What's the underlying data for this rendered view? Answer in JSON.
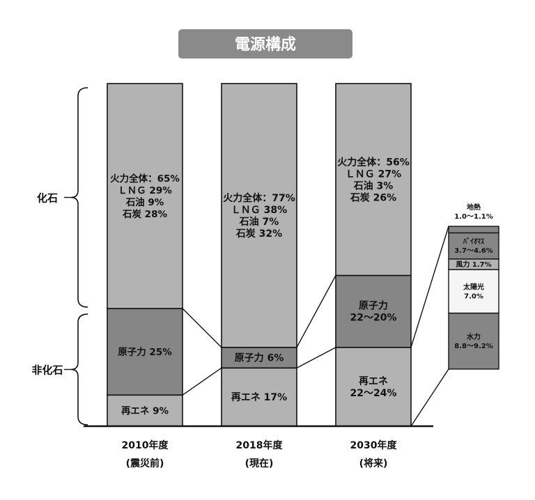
{
  "chart_data": {
    "type": "bar",
    "title": "電源構成",
    "stacking": "stacked-100",
    "grid": false,
    "categories": [
      {
        "year": "2010年度",
        "note": "(震災前)"
      },
      {
        "year": "2018年度",
        "note": "(現在)"
      },
      {
        "year": "2030年度",
        "note": "(将来)"
      }
    ],
    "groups": [
      {
        "label": "化石",
        "member": "fossil"
      },
      {
        "label": "非化石",
        "member": "non-fossil"
      }
    ],
    "bars": [
      {
        "segments": [
          {
            "key": "renewable",
            "value": 9,
            "color": "#b3b3b3",
            "lines": [
              "再エネ 9%"
            ]
          },
          {
            "key": "nuclear",
            "value": 25,
            "color": "#868686",
            "lines": [
              "原子力 25%"
            ]
          },
          {
            "key": "fossil",
            "value": 65,
            "color": "#b3b3b3",
            "lines": [
              "火力全体：65%",
              "ＬＮＧ 29%",
              "石油 9%",
              "石炭 28%"
            ]
          }
        ]
      },
      {
        "segments": [
          {
            "key": "renewable",
            "value": 17,
            "color": "#b3b3b3",
            "lines": [
              "再エネ 17%"
            ]
          },
          {
            "key": "nuclear",
            "value": 6,
            "color": "#868686",
            "lines": [
              "原子力 6%"
            ]
          },
          {
            "key": "fossil",
            "value": 77,
            "color": "#b3b3b3",
            "lines": [
              "火力全体：77%",
              "ＬＮＧ 38%",
              "石油 7%",
              "石炭 32%"
            ]
          }
        ]
      },
      {
        "segments": [
          {
            "key": "renewable",
            "value": 23,
            "color": "#b3b3b3",
            "lines": [
              "再エネ",
              "22～24%"
            ]
          },
          {
            "key": "nuclear",
            "value": 21,
            "color": "#868686",
            "lines": [
              "原子力",
              "22～20%"
            ]
          },
          {
            "key": "fossil",
            "value": 56,
            "color": "#b3b3b3",
            "lines": [
              "火力全体：56%",
              "ＬＮＧ 27%",
              "石油 3%",
              "石炭 26%"
            ]
          }
        ]
      }
    ],
    "breakdown": {
      "of_category": 2,
      "of_segment": "renewable",
      "segments": [
        {
          "key": "hydro",
          "value": 9.0,
          "color": "#868686",
          "lines": [
            "水力",
            "8.8～9.2%"
          ]
        },
        {
          "key": "solar",
          "value": 7.0,
          "color": "#f5f5f5",
          "lines": [
            "太陽光",
            "7.0%"
          ]
        },
        {
          "key": "wind",
          "value": 1.7,
          "color": "#b3b3b3",
          "lines": [
            "風力 1.7%"
          ]
        },
        {
          "key": "biomass",
          "value": 4.2,
          "color": "#868686",
          "lines": [
            "ﾊﾞｲｵﾏｽ",
            "3.7～4.6%"
          ]
        },
        {
          "key": "geothermal",
          "value": 1.05,
          "color": "#868686",
          "lines": []
        }
      ],
      "callout_lines": [
        "地熱",
        "1.0～1.1%"
      ]
    }
  }
}
